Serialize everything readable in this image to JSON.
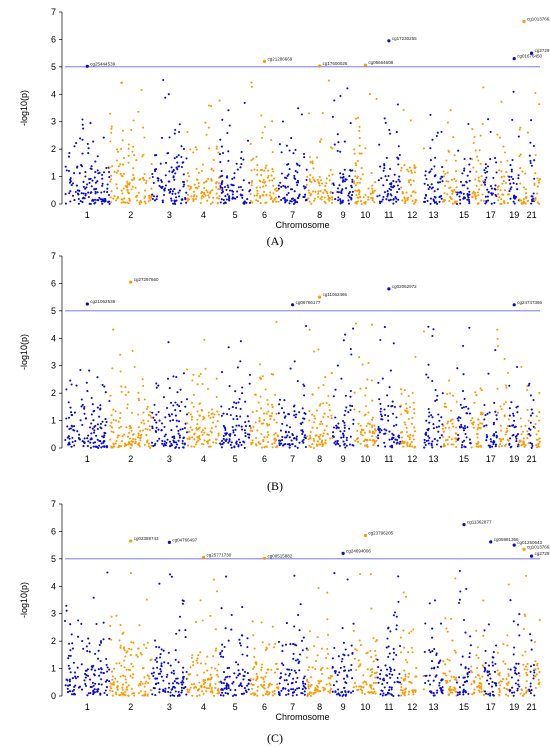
{
  "chart_data": [
    {
      "type": "scatter",
      "panel_label": "(A)",
      "xlabel": "Chromosome",
      "ylabel": "-log10(p)",
      "ylim": [
        0,
        7
      ],
      "threshold": 5,
      "colors": {
        "odd": "#0a0ad2",
        "even": "#ff9900",
        "threshold": "#6666ee"
      },
      "x_ticks": [
        "1",
        "2",
        "3",
        "4",
        "5",
        "6",
        "7",
        "8",
        "9",
        "10",
        "11",
        "12",
        "13",
        "15",
        "17",
        "19",
        "21"
      ],
      "hits": [
        {
          "chr": 1,
          "name": "cg25444539",
          "y": 5.02
        },
        {
          "chr": 6,
          "name": "cg21286669",
          "y": 5.2
        },
        {
          "chr": 8,
          "name": "cg17600026",
          "y": 5.03
        },
        {
          "chr": 10,
          "name": "cg06664608",
          "y": 5.06
        },
        {
          "chr": 11,
          "name": "cg17230255",
          "y": 5.95
        },
        {
          "chr": 19,
          "name": "cg01676450",
          "y": 5.3
        },
        {
          "chr": 20,
          "name": "cg10137662",
          "y": 6.65
        },
        {
          "chr": 21,
          "name": "cg27297662",
          "y": 5.5
        }
      ]
    },
    {
      "type": "scatter",
      "panel_label": "(B)",
      "xlabel": "",
      "ylabel": "-log10(p)",
      "ylim": [
        0,
        7
      ],
      "threshold": 5,
      "colors": {
        "odd": "#0a0ad2",
        "even": "#ff9900",
        "threshold": "#6666ee"
      },
      "x_ticks": [
        "1",
        "2",
        "3",
        "4",
        "5",
        "6",
        "7",
        "8",
        "9",
        "10",
        "11",
        "12",
        "13",
        "15",
        "17",
        "19",
        "21"
      ],
      "hits": [
        {
          "chr": 1,
          "name": "cg21062536",
          "y": 5.25
        },
        {
          "chr": 2,
          "name": "cg27297660",
          "y": 6.05
        },
        {
          "chr": 7,
          "name": "cg06786177",
          "y": 5.22
        },
        {
          "chr": 8,
          "name": "cg11062466",
          "y": 5.5
        },
        {
          "chr": 11,
          "name": "cg02052972",
          "y": 5.8
        },
        {
          "chr": 19,
          "name": "cg24747366",
          "y": 5.22
        }
      ]
    },
    {
      "type": "scatter",
      "panel_label": "(C)",
      "xlabel": "Chromosome",
      "ylabel": "-log10(p)",
      "ylim": [
        0,
        7
      ],
      "threshold": 5,
      "colors": {
        "odd": "#0a0ad2",
        "even": "#ff9900",
        "threshold": "#6666ee"
      },
      "x_ticks": [
        "1",
        "2",
        "3",
        "4",
        "5",
        "6",
        "7",
        "8",
        "9",
        "10",
        "11",
        "12",
        "13",
        "15",
        "17",
        "19",
        "21"
      ],
      "hits": [
        {
          "chr": 2,
          "name": "cg02389743",
          "y": 5.65
        },
        {
          "chr": 3,
          "name": "cg04766497",
          "y": 5.6
        },
        {
          "chr": 4,
          "name": "cg25771730",
          "y": 5.05
        },
        {
          "chr": 6,
          "name": "cg00515882",
          "y": 5.02
        },
        {
          "chr": 9,
          "name": "cg24694006",
          "y": 5.2
        },
        {
          "chr": 10,
          "name": "cg23796205",
          "y": 5.85
        },
        {
          "chr": 15,
          "name": "cg11362877",
          "y": 6.25
        },
        {
          "chr": 17,
          "name": "cg05981366",
          "y": 5.62
        },
        {
          "chr": 19,
          "name": "cg01250643",
          "y": 5.5
        },
        {
          "chr": 20,
          "name": "cg10137662",
          "y": 5.35
        },
        {
          "chr": 21,
          "name": "cg27297662",
          "y": 5.1
        }
      ]
    }
  ]
}
